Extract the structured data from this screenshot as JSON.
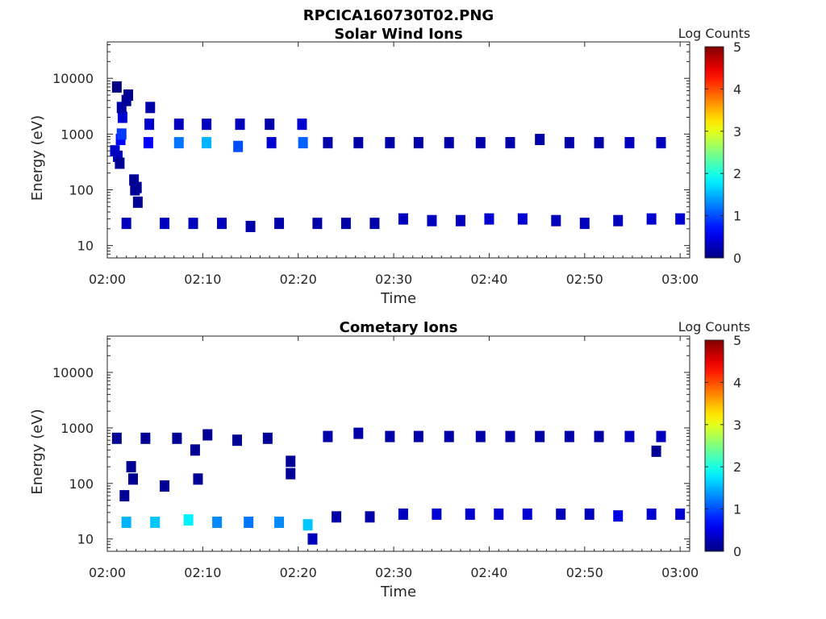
{
  "figure_title": "RPCICA160730T02.PNG",
  "chart_data": [
    {
      "type": "heatmap",
      "title": "Solar Wind Ions",
      "xlabel": "Time",
      "ylabel": "Energy (eV)",
      "yscale": "log",
      "ylim": [
        6,
        45000
      ],
      "xlim_minutes": [
        0,
        61
      ],
      "xticks": [
        "02:00",
        "02:10",
        "02:20",
        "02:30",
        "02:40",
        "02:50",
        "03:00"
      ],
      "yticks": [
        "10",
        "100",
        "1000",
        "10000"
      ],
      "colorbar_label": "Log Counts",
      "colorbar_ticks": [
        "0",
        "1",
        "2",
        "3",
        "4",
        "5"
      ],
      "colorbar_range": [
        0,
        5
      ],
      "colormap": "jet",
      "cells": [
        [
          1.0,
          7000,
          0.0
        ],
        [
          0.8,
          500,
          0.4
        ],
        [
          1.1,
          400,
          0.3
        ],
        [
          1.3,
          300,
          0.1
        ],
        [
          1.4,
          800,
          0.6
        ],
        [
          1.5,
          1000,
          0.9
        ],
        [
          1.6,
          2000,
          0.4
        ],
        [
          1.5,
          3000,
          0.2
        ],
        [
          2.2,
          5000,
          0.1
        ],
        [
          2.0,
          4000,
          0.1
        ],
        [
          2.8,
          150,
          0.1
        ],
        [
          2.9,
          100,
          0.1
        ],
        [
          3.1,
          110,
          0.1
        ],
        [
          3.2,
          60,
          0.1
        ],
        [
          4.3,
          700,
          0.6
        ],
        [
          4.4,
          1500,
          0.4
        ],
        [
          4.5,
          3000,
          0.2
        ],
        [
          7.5,
          700,
          1.2
        ],
        [
          7.5,
          1500,
          0.3
        ],
        [
          10.4,
          700,
          1.5
        ],
        [
          10.4,
          1500,
          0.3
        ],
        [
          13.7,
          600,
          1.0
        ],
        [
          13.9,
          1500,
          0.3
        ],
        [
          17.2,
          700,
          0.4
        ],
        [
          17.0,
          1500,
          0.2
        ],
        [
          20.5,
          700,
          1.1
        ],
        [
          20.4,
          1500,
          0.4
        ],
        [
          23.1,
          700,
          0.2
        ],
        [
          26.3,
          700,
          0.2
        ],
        [
          29.6,
          700,
          0.2
        ],
        [
          32.6,
          700,
          0.2
        ],
        [
          35.8,
          700,
          0.2
        ],
        [
          39.1,
          700,
          0.2
        ],
        [
          42.2,
          700,
          0.2
        ],
        [
          45.3,
          800,
          0.2
        ],
        [
          48.4,
          700,
          0.2
        ],
        [
          51.5,
          700,
          0.2
        ],
        [
          54.7,
          700,
          0.3
        ],
        [
          58.0,
          700,
          0.3
        ],
        [
          2.0,
          25,
          0.3
        ],
        [
          6.0,
          25,
          0.3
        ],
        [
          9.0,
          25,
          0.3
        ],
        [
          12.0,
          25,
          0.3
        ],
        [
          15.0,
          22,
          0.2
        ],
        [
          18.0,
          25,
          0.2
        ],
        [
          22.0,
          25,
          0.2
        ],
        [
          25.0,
          25,
          0.2
        ],
        [
          28.0,
          25,
          0.2
        ],
        [
          31.0,
          30,
          0.3
        ],
        [
          34.0,
          28,
          0.3
        ],
        [
          37.0,
          28,
          0.3
        ],
        [
          40.0,
          30,
          0.4
        ],
        [
          43.5,
          30,
          0.4
        ],
        [
          47.0,
          28,
          0.3
        ],
        [
          50.0,
          25,
          0.3
        ],
        [
          53.5,
          28,
          0.3
        ],
        [
          57.0,
          30,
          0.4
        ],
        [
          60.0,
          30,
          0.4
        ]
      ]
    },
    {
      "type": "heatmap",
      "title": "Cometary Ions",
      "xlabel": "Time",
      "ylabel": "Energy (eV)",
      "yscale": "log",
      "ylim": [
        6,
        45000
      ],
      "xlim_minutes": [
        0,
        61
      ],
      "xticks": [
        "02:00",
        "02:10",
        "02:20",
        "02:30",
        "02:40",
        "02:50",
        "03:00"
      ],
      "yticks": [
        "10",
        "100",
        "1000",
        "10000"
      ],
      "colorbar_label": "Log Counts",
      "colorbar_ticks": [
        "0",
        "1",
        "2",
        "3",
        "4",
        "5"
      ],
      "colorbar_range": [
        0,
        5
      ],
      "colormap": "jet",
      "cells": [
        [
          1.0,
          650,
          0.1
        ],
        [
          4.0,
          650,
          0.1
        ],
        [
          7.3,
          650,
          0.1
        ],
        [
          10.5,
          750,
          0.1
        ],
        [
          13.6,
          600,
          0.1
        ],
        [
          16.8,
          650,
          0.1
        ],
        [
          9.2,
          400,
          0.1
        ],
        [
          19.2,
          250,
          0.1
        ],
        [
          19.2,
          150,
          0.1
        ],
        [
          2.5,
          200,
          0.1
        ],
        [
          2.7,
          120,
          0.1
        ],
        [
          6.0,
          90,
          0.1
        ],
        [
          9.5,
          120,
          0.1
        ],
        [
          1.8,
          60,
          0.1
        ],
        [
          23.1,
          700,
          0.2
        ],
        [
          26.3,
          800,
          0.2
        ],
        [
          29.6,
          700,
          0.2
        ],
        [
          32.6,
          700,
          0.2
        ],
        [
          35.8,
          700,
          0.2
        ],
        [
          39.1,
          700,
          0.2
        ],
        [
          42.2,
          700,
          0.2
        ],
        [
          45.3,
          700,
          0.2
        ],
        [
          48.4,
          700,
          0.2
        ],
        [
          51.5,
          700,
          0.2
        ],
        [
          54.7,
          700,
          0.3
        ],
        [
          57.5,
          380,
          0.1
        ],
        [
          58.0,
          700,
          0.3
        ],
        [
          2.0,
          20,
          1.5
        ],
        [
          5.0,
          20,
          1.6
        ],
        [
          8.5,
          22,
          1.8
        ],
        [
          11.5,
          20,
          1.3
        ],
        [
          14.8,
          20,
          1.2
        ],
        [
          18.0,
          20,
          1.3
        ],
        [
          21.0,
          18,
          1.6
        ],
        [
          21.5,
          10,
          0.3
        ],
        [
          24.0,
          25,
          0.2
        ],
        [
          27.5,
          25,
          0.2
        ],
        [
          31.0,
          28,
          0.3
        ],
        [
          34.5,
          28,
          0.4
        ],
        [
          38.0,
          28,
          0.4
        ],
        [
          41.0,
          28,
          0.4
        ],
        [
          44.0,
          28,
          0.4
        ],
        [
          47.5,
          28,
          0.3
        ],
        [
          50.5,
          28,
          0.3
        ],
        [
          53.5,
          26,
          0.5
        ],
        [
          57.0,
          28,
          0.4
        ],
        [
          60.0,
          28,
          0.4
        ]
      ]
    }
  ]
}
